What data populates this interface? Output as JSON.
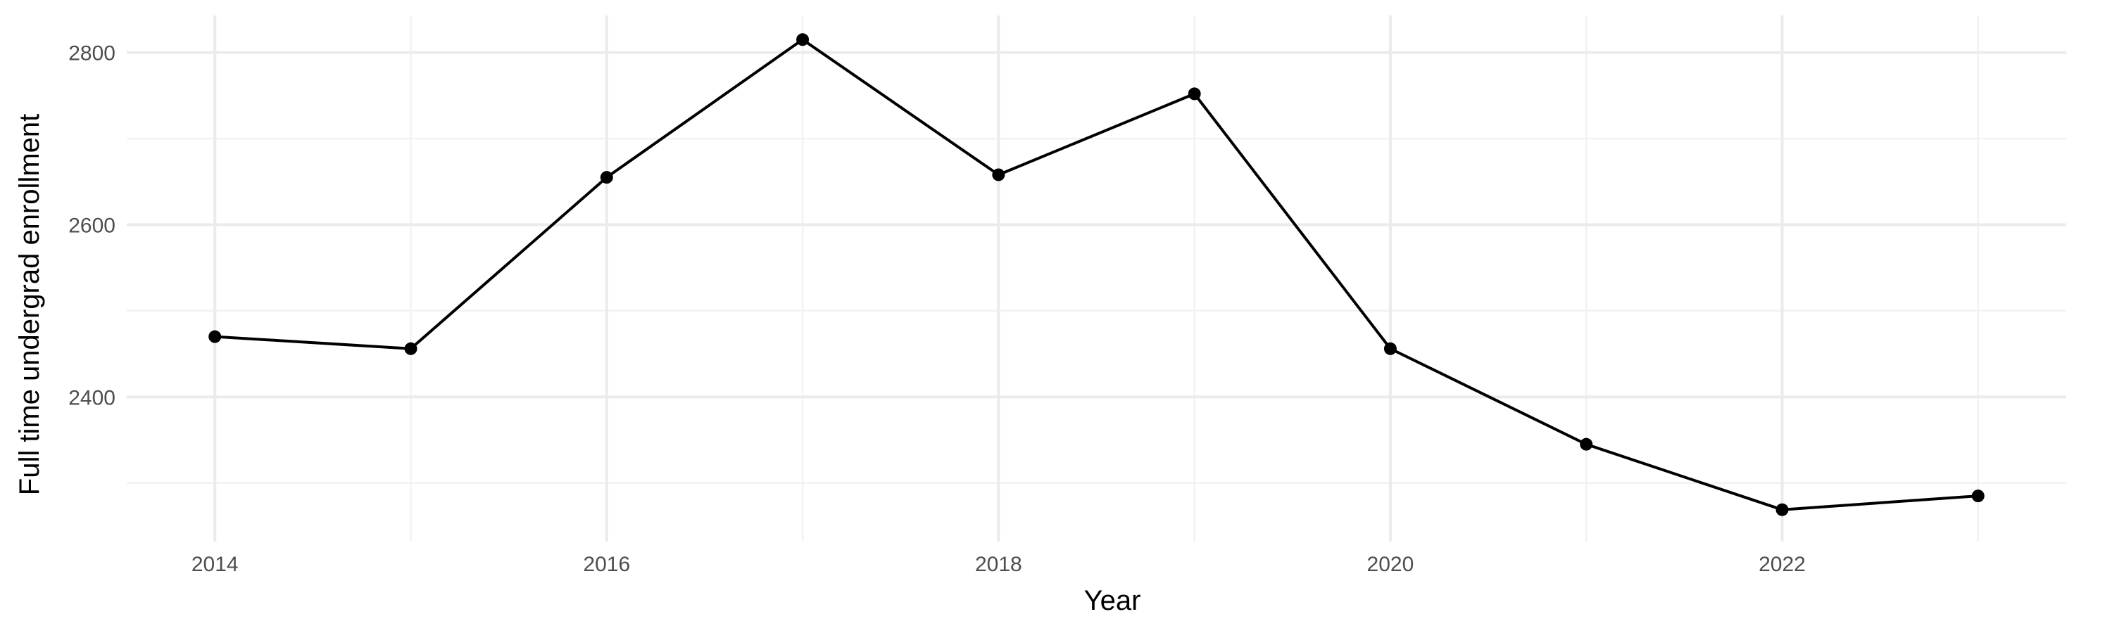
{
  "chart_data": {
    "type": "line",
    "title": "",
    "xlabel": "Year",
    "ylabel": "Full time undergrad enrollment",
    "x": [
      2014,
      2015,
      2016,
      2017,
      2018,
      2019,
      2020,
      2021,
      2022,
      2023
    ],
    "series": [
      {
        "values": [
          2470,
          2456,
          2655,
          2815,
          2658,
          2752,
          2456,
          2345,
          2269,
          2285
        ]
      }
    ],
    "xlim": [
      2013.55,
      2023.45
    ],
    "ylim": [
      2232,
      2843
    ],
    "x_ticks": [
      2014,
      2016,
      2018,
      2020,
      2022
    ],
    "x_minor_ticks": [
      2015,
      2017,
      2019,
      2021,
      2023
    ],
    "y_ticks": [
      2400,
      2600,
      2800
    ],
    "y_minor_ticks": [
      2300,
      2500,
      2700
    ],
    "grid": true,
    "legend": "none",
    "line_color": "#000000",
    "point_color": "#000000",
    "grid_color": "#ebebeb"
  }
}
